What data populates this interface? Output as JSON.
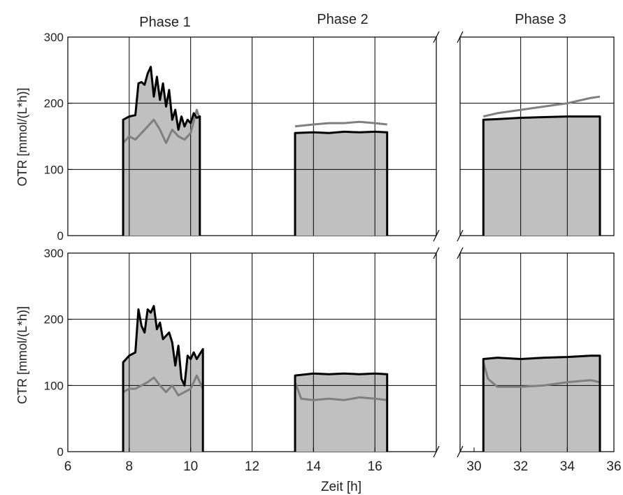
{
  "chart_data": [
    {
      "type": "area",
      "ylabel": "OTR [mmol/(L*h)]",
      "ylim": [
        0,
        300
      ],
      "yticks": [
        "0",
        "100",
        "200",
        "300"
      ],
      "phase_labels": [
        "Phase 1",
        "Phase 2",
        "Phase 3"
      ],
      "grid": true,
      "series": [
        {
          "color": "#000000",
          "fill": "#c0c0c0",
          "segments": [
            {
              "x": [
                7.8,
                8.0,
                8.2,
                8.3,
                8.4,
                8.5,
                8.6,
                8.7,
                8.8,
                8.9,
                9.0,
                9.1,
                9.2,
                9.3,
                9.4,
                9.5,
                9.6,
                9.7,
                9.8,
                9.9,
                10.0,
                10.1,
                10.2,
                10.3
              ],
              "y": [
                175,
                180,
                182,
                230,
                232,
                228,
                245,
                255,
                210,
                240,
                205,
                230,
                195,
                220,
                175,
                190,
                160,
                180,
                165,
                175,
                170,
                185,
                178,
                180
              ]
            },
            {
              "x": [
                13.4,
                14.0,
                14.5,
                15.0,
                15.5,
                16.0,
                16.4
              ],
              "y": [
                155,
                156,
                155,
                157,
                156,
                157,
                156
              ]
            },
            {
              "x": [
                30.4,
                31.0,
                32.0,
                33.0,
                34.0,
                35.0,
                35.4
              ],
              "y": [
                175,
                176,
                178,
                179,
                180,
                180,
                180
              ]
            }
          ]
        },
        {
          "color": "#7f7f7f",
          "segments": [
            {
              "x": [
                7.8,
                8.0,
                8.2,
                8.4,
                8.6,
                8.8,
                9.0,
                9.2,
                9.4,
                9.6,
                9.8,
                10.0,
                10.2,
                10.3
              ],
              "y": [
                140,
                150,
                145,
                155,
                165,
                175,
                160,
                140,
                160,
                150,
                145,
                155,
                190,
                175
              ]
            },
            {
              "x": [
                13.4,
                14.0,
                14.5,
                15.0,
                15.5,
                16.0,
                16.4
              ],
              "y": [
                165,
                168,
                170,
                170,
                172,
                170,
                168
              ]
            },
            {
              "x": [
                30.4,
                31.0,
                32.0,
                33.0,
                34.0,
                35.0,
                35.4
              ],
              "y": [
                180,
                185,
                190,
                195,
                200,
                208,
                210
              ]
            }
          ]
        }
      ]
    },
    {
      "type": "area",
      "ylabel": "CTR [mmol/(L*h)]",
      "xlabel": "Zeit [h]",
      "ylim": [
        0,
        300
      ],
      "yticks": [
        "0",
        "100",
        "200",
        "300"
      ],
      "xticks_left": [
        "6",
        "8",
        "10",
        "12",
        "14",
        "16"
      ],
      "xticks_right": [
        "30",
        "32",
        "34",
        "36"
      ],
      "x_axis_break": "between 18 and 30",
      "grid": true,
      "series": [
        {
          "color": "#000000",
          "fill": "#c0c0c0",
          "segments": [
            {
              "x": [
                7.8,
                8.0,
                8.2,
                8.3,
                8.4,
                8.5,
                8.6,
                8.7,
                8.8,
                8.9,
                9.0,
                9.1,
                9.2,
                9.3,
                9.4,
                9.5,
                9.6,
                9.7,
                9.8,
                9.9,
                10.0,
                10.1,
                10.2,
                10.4
              ],
              "y": [
                135,
                145,
                150,
                215,
                190,
                180,
                215,
                210,
                220,
                185,
                195,
                170,
                175,
                180,
                165,
                130,
                160,
                110,
                100,
                145,
                140,
                150,
                140,
                155
              ]
            },
            {
              "x": [
                13.4,
                14.0,
                14.5,
                15.0,
                15.5,
                16.0,
                16.4
              ],
              "y": [
                115,
                118,
                117,
                118,
                117,
                118,
                117
              ]
            },
            {
              "x": [
                30.4,
                31.0,
                32.0,
                33.0,
                34.0,
                35.0,
                35.4
              ],
              "y": [
                140,
                142,
                140,
                142,
                143,
                145,
                145
              ]
            }
          ]
        },
        {
          "color": "#7f7f7f",
          "segments": [
            {
              "x": [
                7.8,
                8.0,
                8.2,
                8.4,
                8.6,
                8.8,
                9.0,
                9.2,
                9.4,
                9.6,
                9.8,
                10.0,
                10.2,
                10.4
              ],
              "y": [
                90,
                95,
                95,
                100,
                105,
                112,
                100,
                90,
                100,
                85,
                90,
                95,
                115,
                95
              ]
            },
            {
              "x": [
                13.4,
                13.6,
                14.0,
                14.5,
                15.0,
                15.5,
                16.0,
                16.4
              ],
              "y": [
                105,
                80,
                78,
                80,
                78,
                82,
                80,
                78
              ]
            },
            {
              "x": [
                30.4,
                30.6,
                31.0,
                32.0,
                33.0,
                34.0,
                35.0,
                35.4
              ],
              "y": [
                135,
                110,
                98,
                98,
                100,
                105,
                108,
                105
              ]
            }
          ]
        }
      ]
    }
  ]
}
